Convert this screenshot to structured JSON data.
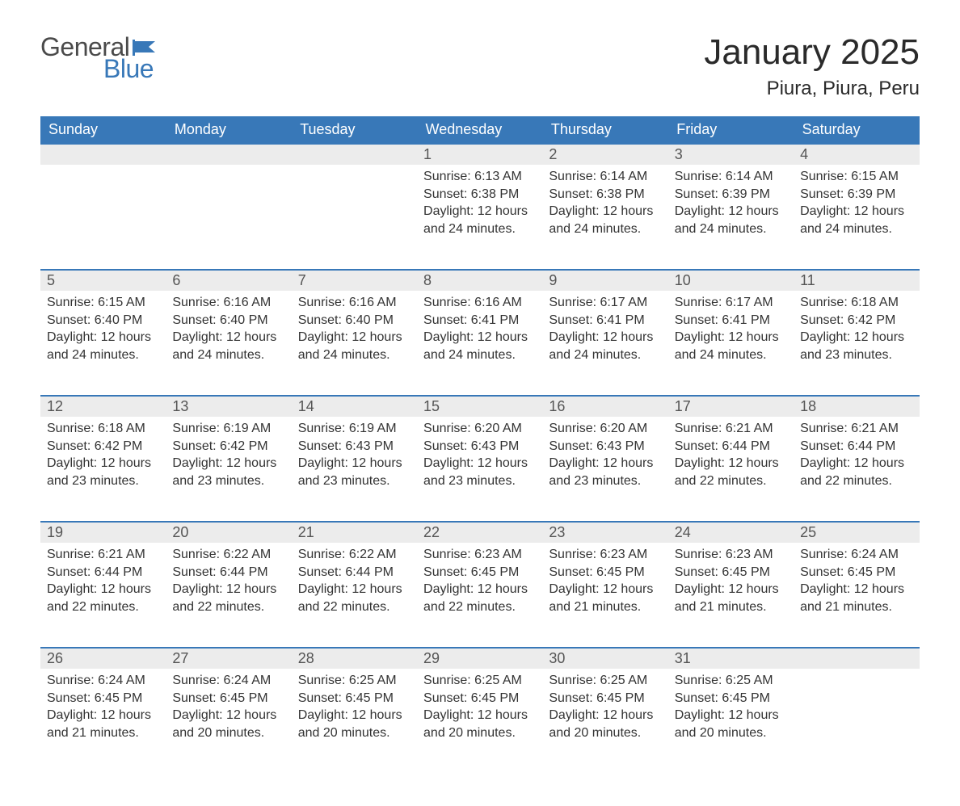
{
  "brand": {
    "word1": "General",
    "word2": "Blue",
    "word1_color": "#4a4a4a",
    "word2_color": "#3878b8",
    "flag_color": "#3878b8"
  },
  "header": {
    "month_title": "January 2025",
    "location": "Piura, Piura, Peru"
  },
  "styling": {
    "header_bg": "#3878b8",
    "header_text": "#ffffff",
    "daynum_bg": "#ececec",
    "daynum_border_top": "#3878b8",
    "body_text_color": "#333333",
    "page_bg": "#ffffff",
    "title_fontsize_pt": 33,
    "location_fontsize_pt": 18,
    "dayheader_fontsize_pt": 14,
    "cell_fontsize_pt": 12
  },
  "day_headers": [
    "Sunday",
    "Monday",
    "Tuesday",
    "Wednesday",
    "Thursday",
    "Friday",
    "Saturday"
  ],
  "weeks": [
    [
      null,
      null,
      null,
      {
        "n": "1",
        "sunrise": "Sunrise: 6:13 AM",
        "sunset": "Sunset: 6:38 PM",
        "daylight": "Daylight: 12 hours and 24 minutes."
      },
      {
        "n": "2",
        "sunrise": "Sunrise: 6:14 AM",
        "sunset": "Sunset: 6:38 PM",
        "daylight": "Daylight: 12 hours and 24 minutes."
      },
      {
        "n": "3",
        "sunrise": "Sunrise: 6:14 AM",
        "sunset": "Sunset: 6:39 PM",
        "daylight": "Daylight: 12 hours and 24 minutes."
      },
      {
        "n": "4",
        "sunrise": "Sunrise: 6:15 AM",
        "sunset": "Sunset: 6:39 PM",
        "daylight": "Daylight: 12 hours and 24 minutes."
      }
    ],
    [
      {
        "n": "5",
        "sunrise": "Sunrise: 6:15 AM",
        "sunset": "Sunset: 6:40 PM",
        "daylight": "Daylight: 12 hours and 24 minutes."
      },
      {
        "n": "6",
        "sunrise": "Sunrise: 6:16 AM",
        "sunset": "Sunset: 6:40 PM",
        "daylight": "Daylight: 12 hours and 24 minutes."
      },
      {
        "n": "7",
        "sunrise": "Sunrise: 6:16 AM",
        "sunset": "Sunset: 6:40 PM",
        "daylight": "Daylight: 12 hours and 24 minutes."
      },
      {
        "n": "8",
        "sunrise": "Sunrise: 6:16 AM",
        "sunset": "Sunset: 6:41 PM",
        "daylight": "Daylight: 12 hours and 24 minutes."
      },
      {
        "n": "9",
        "sunrise": "Sunrise: 6:17 AM",
        "sunset": "Sunset: 6:41 PM",
        "daylight": "Daylight: 12 hours and 24 minutes."
      },
      {
        "n": "10",
        "sunrise": "Sunrise: 6:17 AM",
        "sunset": "Sunset: 6:41 PM",
        "daylight": "Daylight: 12 hours and 24 minutes."
      },
      {
        "n": "11",
        "sunrise": "Sunrise: 6:18 AM",
        "sunset": "Sunset: 6:42 PM",
        "daylight": "Daylight: 12 hours and 23 minutes."
      }
    ],
    [
      {
        "n": "12",
        "sunrise": "Sunrise: 6:18 AM",
        "sunset": "Sunset: 6:42 PM",
        "daylight": "Daylight: 12 hours and 23 minutes."
      },
      {
        "n": "13",
        "sunrise": "Sunrise: 6:19 AM",
        "sunset": "Sunset: 6:42 PM",
        "daylight": "Daylight: 12 hours and 23 minutes."
      },
      {
        "n": "14",
        "sunrise": "Sunrise: 6:19 AM",
        "sunset": "Sunset: 6:43 PM",
        "daylight": "Daylight: 12 hours and 23 minutes."
      },
      {
        "n": "15",
        "sunrise": "Sunrise: 6:20 AM",
        "sunset": "Sunset: 6:43 PM",
        "daylight": "Daylight: 12 hours and 23 minutes."
      },
      {
        "n": "16",
        "sunrise": "Sunrise: 6:20 AM",
        "sunset": "Sunset: 6:43 PM",
        "daylight": "Daylight: 12 hours and 23 minutes."
      },
      {
        "n": "17",
        "sunrise": "Sunrise: 6:21 AM",
        "sunset": "Sunset: 6:44 PM",
        "daylight": "Daylight: 12 hours and 22 minutes."
      },
      {
        "n": "18",
        "sunrise": "Sunrise: 6:21 AM",
        "sunset": "Sunset: 6:44 PM",
        "daylight": "Daylight: 12 hours and 22 minutes."
      }
    ],
    [
      {
        "n": "19",
        "sunrise": "Sunrise: 6:21 AM",
        "sunset": "Sunset: 6:44 PM",
        "daylight": "Daylight: 12 hours and 22 minutes."
      },
      {
        "n": "20",
        "sunrise": "Sunrise: 6:22 AM",
        "sunset": "Sunset: 6:44 PM",
        "daylight": "Daylight: 12 hours and 22 minutes."
      },
      {
        "n": "21",
        "sunrise": "Sunrise: 6:22 AM",
        "sunset": "Sunset: 6:44 PM",
        "daylight": "Daylight: 12 hours and 22 minutes."
      },
      {
        "n": "22",
        "sunrise": "Sunrise: 6:23 AM",
        "sunset": "Sunset: 6:45 PM",
        "daylight": "Daylight: 12 hours and 22 minutes."
      },
      {
        "n": "23",
        "sunrise": "Sunrise: 6:23 AM",
        "sunset": "Sunset: 6:45 PM",
        "daylight": "Daylight: 12 hours and 21 minutes."
      },
      {
        "n": "24",
        "sunrise": "Sunrise: 6:23 AM",
        "sunset": "Sunset: 6:45 PM",
        "daylight": "Daylight: 12 hours and 21 minutes."
      },
      {
        "n": "25",
        "sunrise": "Sunrise: 6:24 AM",
        "sunset": "Sunset: 6:45 PM",
        "daylight": "Daylight: 12 hours and 21 minutes."
      }
    ],
    [
      {
        "n": "26",
        "sunrise": "Sunrise: 6:24 AM",
        "sunset": "Sunset: 6:45 PM",
        "daylight": "Daylight: 12 hours and 21 minutes."
      },
      {
        "n": "27",
        "sunrise": "Sunrise: 6:24 AM",
        "sunset": "Sunset: 6:45 PM",
        "daylight": "Daylight: 12 hours and 20 minutes."
      },
      {
        "n": "28",
        "sunrise": "Sunrise: 6:25 AM",
        "sunset": "Sunset: 6:45 PM",
        "daylight": "Daylight: 12 hours and 20 minutes."
      },
      {
        "n": "29",
        "sunrise": "Sunrise: 6:25 AM",
        "sunset": "Sunset: 6:45 PM",
        "daylight": "Daylight: 12 hours and 20 minutes."
      },
      {
        "n": "30",
        "sunrise": "Sunrise: 6:25 AM",
        "sunset": "Sunset: 6:45 PM",
        "daylight": "Daylight: 12 hours and 20 minutes."
      },
      {
        "n": "31",
        "sunrise": "Sunrise: 6:25 AM",
        "sunset": "Sunset: 6:45 PM",
        "daylight": "Daylight: 12 hours and 20 minutes."
      },
      null
    ]
  ]
}
